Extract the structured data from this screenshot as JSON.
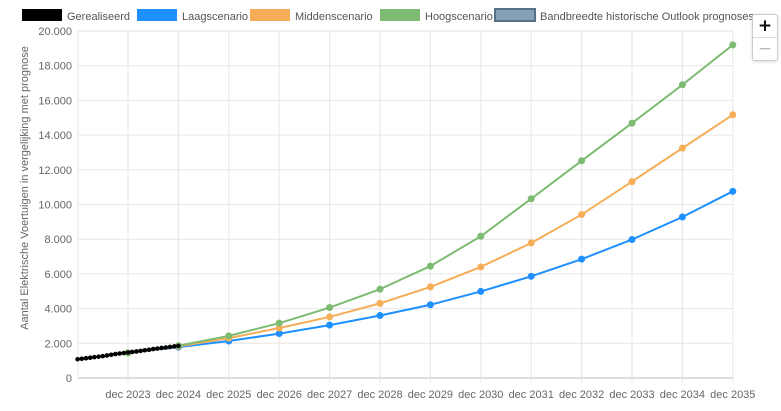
{
  "chart_data": {
    "type": "line",
    "ylabel": "Aantal Elektrische Voertuigen in vergelijking met prognose",
    "ylim": [
      0,
      20000
    ],
    "y_ticks": [
      "0",
      "2.000",
      "4.000",
      "6.000",
      "8.000",
      "10.000",
      "12.000",
      "14.000",
      "16.000",
      "18.000",
      "20.000"
    ],
    "y_tick_values": [
      0,
      2000,
      4000,
      6000,
      8000,
      10000,
      12000,
      14000,
      16000,
      18000,
      20000
    ],
    "categories": [
      "dec 2023",
      "dec 2024",
      "dec 2025",
      "dec 2026",
      "dec 2027",
      "dec 2028",
      "dec 2029",
      "dec 2030",
      "dec 2031",
      "dec 2032",
      "dec 2033",
      "dec 2034",
      "dec 2035"
    ],
    "grid": true,
    "legend_position": "top",
    "legend": [
      {
        "name": "Gerealiseerd",
        "color": "#000000"
      },
      {
        "name": "Laagscenario",
        "color": "#1e90ff"
      },
      {
        "name": "Middenscenario",
        "color": "#f5ad57"
      },
      {
        "name": "Hoogscenario",
        "color": "#7dbb72"
      },
      {
        "name": "Bandbreedte historische Outlook prognoses",
        "color": "#86a0b4"
      }
    ],
    "series": [
      {
        "name": "Laagscenario",
        "color": "#1e90ff",
        "values": [
          1450,
          1780,
          2130,
          2560,
          3050,
          3600,
          4220,
          4990,
          5860,
          6850,
          7980,
          9280,
          10760
        ]
      },
      {
        "name": "Middenscenario",
        "color": "#f5ad57",
        "values": [
          1450,
          1820,
          2300,
          2880,
          3520,
          4300,
          5250,
          6400,
          7780,
          9420,
          11320,
          13250,
          15170
        ]
      },
      {
        "name": "Hoogscenario",
        "color": "#7dbb72",
        "values": [
          1450,
          1860,
          2430,
          3160,
          4060,
          5120,
          6450,
          8170,
          10330,
          12520,
          14690,
          16900,
          19200
        ]
      }
    ],
    "realized": {
      "name": "Gerealiseerd",
      "color": "#000000",
      "x": [
        -1.0,
        -0.917,
        -0.833,
        -0.75,
        -0.667,
        -0.583,
        -0.5,
        -0.417,
        -0.333,
        -0.25,
        -0.167,
        -0.083,
        0.0,
        0.083,
        0.167,
        0.25,
        0.333,
        0.417,
        0.5,
        0.583,
        0.667,
        0.75,
        0.833,
        0.917,
        1.0
      ],
      "values": [
        1080,
        1110,
        1140,
        1170,
        1200,
        1230,
        1260,
        1300,
        1340,
        1380,
        1410,
        1440,
        1470,
        1500,
        1530,
        1560,
        1600,
        1630,
        1670,
        1700,
        1730,
        1760,
        1790,
        1820,
        1850
      ]
    }
  },
  "controls": {
    "zoom_in": "+",
    "zoom_out": "−"
  }
}
